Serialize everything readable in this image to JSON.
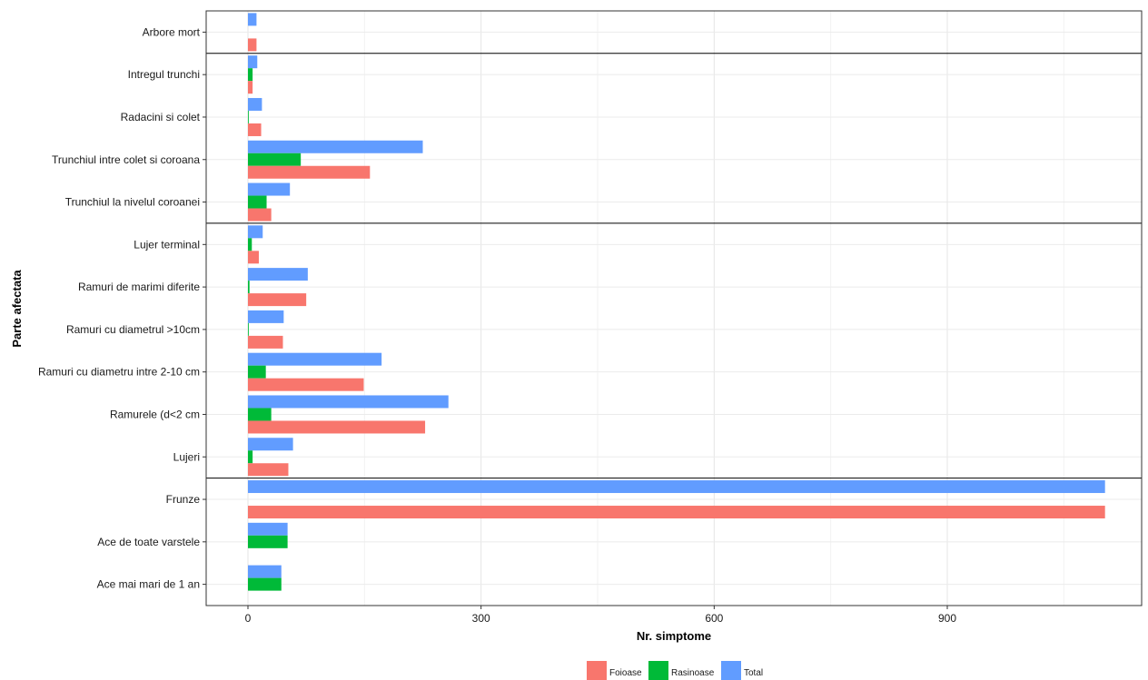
{
  "chart_data": {
    "type": "bar",
    "orientation": "horizontal",
    "xlabel": "Nr. simptome",
    "ylabel": "Parte afectata",
    "xlim": [
      -52,
      1150
    ],
    "xticks": [
      0,
      300,
      600,
      900
    ],
    "grid": true,
    "legend_position": "bottom",
    "series": [
      {
        "name": "Foioase",
        "color": "#F8766D"
      },
      {
        "name": "Rasinoase",
        "color": "#00BA38"
      },
      {
        "name": "Total",
        "color": "#619CFF"
      }
    ],
    "categories": [
      {
        "label": "Arbore mort",
        "group": 1,
        "values": [
          11,
          null,
          11
        ]
      },
      {
        "label": "Intregul trunchi",
        "group": 2,
        "values": [
          6,
          6,
          12
        ]
      },
      {
        "label": "Radacini si colet",
        "group": 2,
        "values": [
          17,
          1,
          18
        ]
      },
      {
        "label": "Trunchiul intre colet si coroana",
        "group": 2,
        "values": [
          157,
          68,
          225
        ]
      },
      {
        "label": "Trunchiul la nivelul coroanei",
        "group": 2,
        "values": [
          30,
          24,
          54
        ]
      },
      {
        "label": "Lujer terminal",
        "group": 3,
        "values": [
          14,
          5,
          19
        ]
      },
      {
        "label": "Ramuri de marimi diferite",
        "group": 3,
        "values": [
          75,
          2,
          77
        ]
      },
      {
        "label": "Ramuri cu diametrul >10cm",
        "group": 3,
        "values": [
          45,
          1,
          46
        ]
      },
      {
        "label": "Ramuri cu diametru intre 2-10 cm",
        "group": 3,
        "values": [
          149,
          23,
          172
        ]
      },
      {
        "label": "Ramurele (d<2 cm",
        "group": 3,
        "values": [
          228,
          30,
          258
        ]
      },
      {
        "label": "Lujeri",
        "group": 3,
        "values": [
          52,
          6,
          58
        ]
      },
      {
        "label": "Frunze",
        "group": 4,
        "values": [
          1103,
          null,
          1103
        ]
      },
      {
        "label": "Ace de toate varstele",
        "group": 4,
        "values": [
          null,
          51,
          51
        ]
      },
      {
        "label": "Ace mai mari de 1 an",
        "group": 4,
        "values": [
          null,
          43,
          43
        ]
      }
    ]
  }
}
